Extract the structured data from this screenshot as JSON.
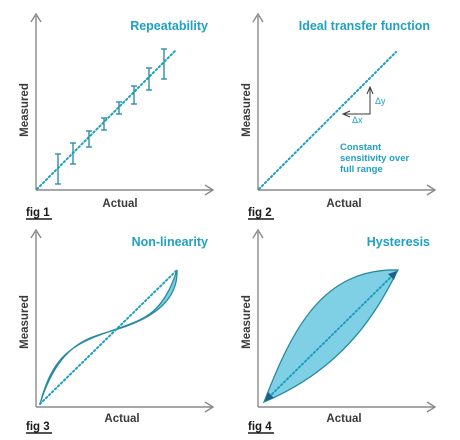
{
  "panels": [
    {
      "title": "Repeatability",
      "xlabel": "Actual",
      "ylabel": "Measured",
      "fig_label": "fig 1"
    },
    {
      "title": "Ideal transfer function",
      "xlabel": "Actual",
      "ylabel": "Measured",
      "fig_label": "fig 2",
      "delta_y": "Δy",
      "delta_x": "Δx",
      "note_lines": [
        "Constant",
        "sensitivity over",
        "full range"
      ]
    },
    {
      "title": "Non-linearity",
      "xlabel": "Actual",
      "ylabel": "Measured",
      "fig_label": "fig 3"
    },
    {
      "title": "Hysteresis",
      "xlabel": "Actual",
      "ylabel": "Measured",
      "fig_label": "fig 4"
    }
  ],
  "colors": {
    "accent": "#1fa1c3",
    "band_fill": "#7fd0e4",
    "axis": "#8a8a8a"
  }
}
